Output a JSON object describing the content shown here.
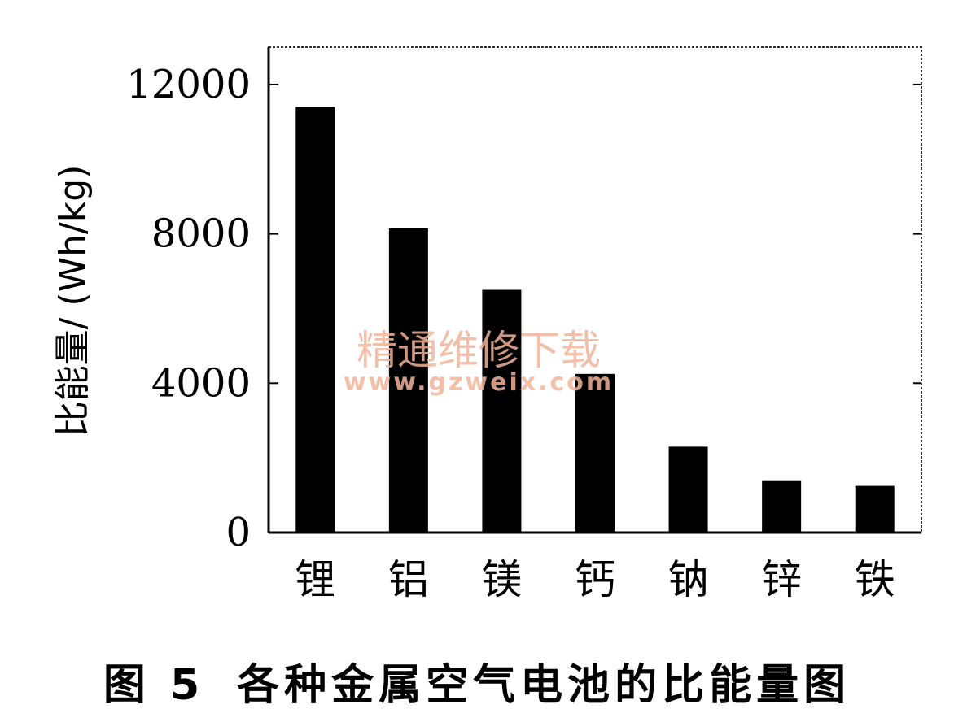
{
  "chart_data": {
    "type": "bar",
    "categories": [
      "锂",
      "铝",
      "镁",
      "钙",
      "钠",
      "锌",
      "铁"
    ],
    "values": [
      11400,
      8150,
      6500,
      4250,
      2300,
      1400,
      1250
    ],
    "ylabel": "比能量/ (Wh/kg)",
    "xlabel": "",
    "ylim": [
      0,
      13000
    ],
    "yticks": [
      0,
      4000,
      8000,
      12000
    ],
    "grid": false,
    "bar_color": "#000000"
  },
  "caption": {
    "figure_number": "图 5",
    "title": "各种金属空气电池的比能量图"
  },
  "watermark": {
    "text": "精通维修下载",
    "url": "www.gzweix.com"
  }
}
